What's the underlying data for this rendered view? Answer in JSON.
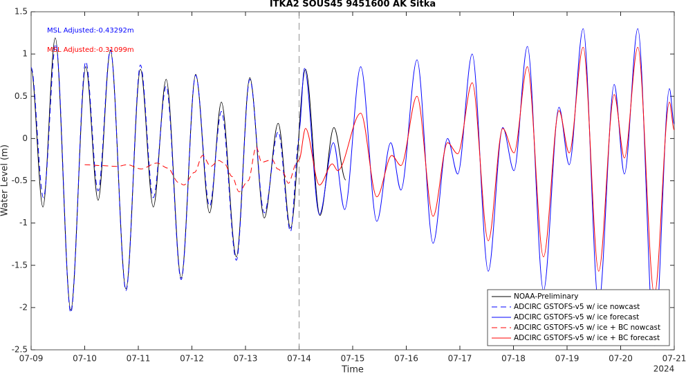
{
  "chart_data": {
    "type": "line",
    "title": "ITKA2 SOUS45 9451600 AK Sitka",
    "xlabel": "Time",
    "ylabel": "Water Level (m)",
    "x_secondary_label": "2024",
    "annotations": [
      {
        "text": "MSL Adjusted:-0.43292m",
        "color": "#0000ff"
      },
      {
        "text": "MSL Adjusted:-0.31099m",
        "color": "#ff0000"
      }
    ],
    "vline": 14,
    "xlim": [
      9,
      21
    ],
    "xticks": [
      {
        "value": 9,
        "label": "07-09"
      },
      {
        "value": 10,
        "label": "07-10"
      },
      {
        "value": 11,
        "label": "07-11"
      },
      {
        "value": 12,
        "label": "07-12"
      },
      {
        "value": 13,
        "label": "07-13"
      },
      {
        "value": 14,
        "label": "07-14"
      },
      {
        "value": 15,
        "label": "07-15"
      },
      {
        "value": 16,
        "label": "07-16"
      },
      {
        "value": 17,
        "label": "07-17"
      },
      {
        "value": 18,
        "label": "07-18"
      },
      {
        "value": 19,
        "label": "07-19"
      },
      {
        "value": 20,
        "label": "07-20"
      },
      {
        "value": 21,
        "label": "07-21"
      }
    ],
    "ylim": [
      -2.5,
      1.5
    ],
    "yticks": [
      -2.5,
      -2,
      -1.5,
      -1,
      -0.5,
      0,
      0.5,
      1,
      1.5
    ],
    "grid": false,
    "legend": "lower right",
    "series": [
      {
        "name": "NOAA-Preliminary",
        "color": "#000000",
        "dash": false,
        "x": [
          9.0,
          9.22,
          9.45,
          9.74,
          10.02,
          10.25,
          10.48,
          10.77,
          11.04,
          11.28,
          11.52,
          11.8,
          12.07,
          12.33,
          12.55,
          12.83,
          13.08,
          13.35,
          13.61,
          13.84,
          14.12,
          14.39,
          14.65,
          14.87
        ],
        "values": [
          0.82,
          -0.81,
          1.19,
          -2.03,
          0.85,
          -0.73,
          1.04,
          -1.78,
          0.82,
          -0.81,
          0.7,
          -1.65,
          0.76,
          -0.88,
          0.43,
          -1.4,
          0.72,
          -0.94,
          0.18,
          -1.06,
          0.82,
          -0.91,
          0.13,
          -0.49
        ]
      },
      {
        "name": "ADCIRC GSTOFS-v5 w/ ice nowcast",
        "color": "#0000ff",
        "dash": true,
        "x": [
          9.0,
          9.23,
          9.46,
          9.74,
          10.02,
          10.25,
          10.48,
          10.77,
          11.04,
          11.28,
          11.52,
          11.8,
          12.07,
          12.33,
          12.55,
          12.83,
          13.08,
          13.35,
          13.61,
          13.84,
          14.0
        ],
        "values": [
          0.84,
          -0.7,
          1.12,
          -2.06,
          0.91,
          -0.62,
          1.05,
          -1.8,
          0.87,
          -0.7,
          0.62,
          -1.67,
          0.75,
          -0.8,
          0.32,
          -1.44,
          0.7,
          -0.88,
          0.08,
          -1.1,
          0.0
        ]
      },
      {
        "name": "ADCIRC GSTOFS-v5 w/ ice forecast",
        "color": "#0000ff",
        "dash": false,
        "x": [
          14.0,
          14.1,
          14.38,
          14.64,
          14.85,
          15.15,
          15.45,
          15.71,
          15.9,
          16.2,
          16.5,
          16.77,
          16.96,
          17.23,
          17.53,
          17.8,
          18.01,
          18.26,
          18.56,
          18.85,
          19.04,
          19.3,
          19.59,
          19.88,
          20.07,
          20.32,
          20.63,
          20.91,
          21.0
        ],
        "values": [
          0.1,
          0.83,
          -0.9,
          -0.05,
          -0.84,
          0.85,
          -0.98,
          -0.05,
          -0.61,
          0.93,
          -1.24,
          0.0,
          -0.42,
          1.0,
          -1.57,
          0.13,
          -0.38,
          1.09,
          -1.8,
          0.37,
          -0.31,
          1.3,
          -1.96,
          0.64,
          -0.42,
          1.3,
          -2.45,
          0.59,
          0.17
        ]
      },
      {
        "name": "ADCIRC GSTOFS-v5 w/ ice + BC nowcast",
        "color": "#ff0000",
        "dash": true,
        "x": [
          10.0,
          10.3,
          10.6,
          10.8,
          11.05,
          11.35,
          11.55,
          11.75,
          11.85,
          12.05,
          12.2,
          12.35,
          12.5,
          12.6,
          12.75,
          12.88,
          13.05,
          13.2,
          13.3,
          13.5,
          13.6,
          13.7,
          13.8,
          13.95,
          14.0
        ],
        "values": [
          -0.31,
          -0.32,
          -0.33,
          -0.31,
          -0.36,
          -0.29,
          -0.35,
          -0.52,
          -0.55,
          -0.4,
          -0.2,
          -0.33,
          -0.26,
          -0.29,
          -0.45,
          -0.63,
          -0.5,
          -0.1,
          -0.28,
          -0.25,
          -0.36,
          -0.4,
          -0.53,
          -0.3,
          -0.25
        ]
      },
      {
        "name": "ADCIRC GSTOFS-v5 w/ ice + BC forecast",
        "color": "#ff0000",
        "dash": false,
        "x": [
          14.0,
          14.12,
          14.38,
          14.62,
          14.72,
          15.15,
          15.45,
          15.73,
          15.9,
          16.2,
          16.5,
          16.77,
          16.96,
          17.23,
          17.53,
          17.8,
          18.01,
          18.26,
          18.56,
          18.85,
          19.04,
          19.3,
          19.59,
          19.88,
          20.07,
          20.32,
          20.63,
          20.91,
          21.0
        ],
        "values": [
          -0.25,
          0.12,
          -0.55,
          -0.3,
          -0.38,
          0.3,
          -0.69,
          -0.2,
          -0.32,
          0.5,
          -0.92,
          -0.05,
          -0.18,
          0.66,
          -1.21,
          0.12,
          -0.17,
          0.85,
          -1.4,
          0.33,
          -0.17,
          1.08,
          -1.57,
          0.52,
          -0.23,
          1.08,
          -1.85,
          0.43,
          0.1
        ]
      }
    ]
  }
}
